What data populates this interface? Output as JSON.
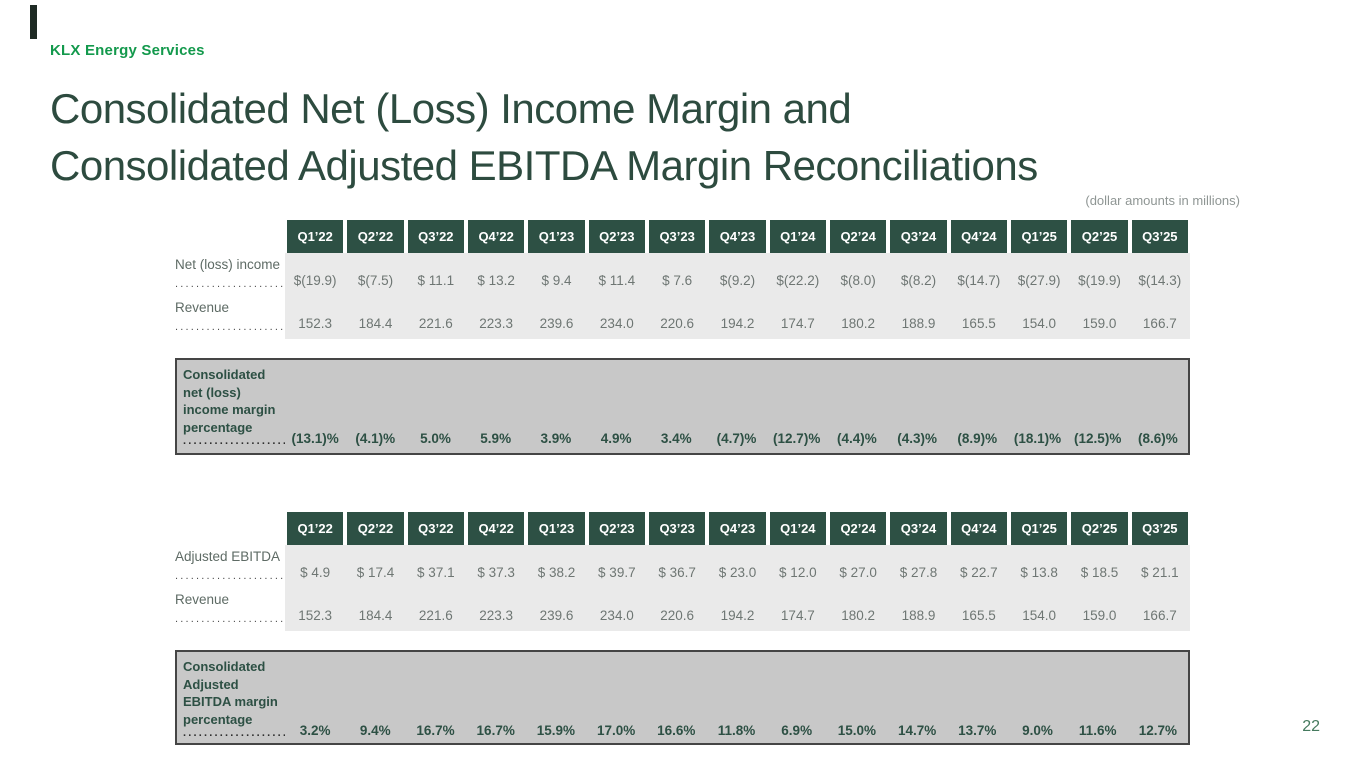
{
  "header": {
    "brand": "KLX Energy Services",
    "title_line1": "Consolidated Net (Loss) Income Margin and",
    "title_line2": "Consolidated Adjusted EBITDA Margin Reconciliations",
    "units_note": "(dollar amounts in millions)"
  },
  "leader_dots": "......................................",
  "quarters": [
    "Q1’22",
    "Q2’22",
    "Q3’22",
    "Q4’22",
    "Q1’23",
    "Q2’23",
    "Q3’23",
    "Q4’23",
    "Q1’24",
    "Q2’24",
    "Q3’24",
    "Q4’24",
    "Q1’25",
    "Q2’25",
    "Q3’25"
  ],
  "table1": {
    "rows": [
      {
        "label": "Net (loss) income",
        "values": [
          "$(19.9)",
          "$(7.5)",
          "$ 11.1",
          "$ 13.2",
          "$ 9.4",
          "$ 11.4",
          "$ 7.6",
          "$(9.2)",
          "$(22.2)",
          "$(8.0)",
          "$(8.2)",
          "$(14.7)",
          "$(27.9)",
          "$(19.9)",
          "$(14.3)"
        ]
      },
      {
        "label": "Revenue",
        "values": [
          "152.3",
          "184.4",
          "221.6",
          "223.3",
          "239.6",
          "234.0",
          "220.6",
          "194.2",
          "174.7",
          "180.2",
          "188.9",
          "165.5",
          "154.0",
          "159.0",
          "166.7"
        ]
      }
    ]
  },
  "block1": {
    "label": "Consolidated\nnet (loss)\nincome margin\npercentage",
    "values": [
      "(13.1)%",
      "(4.1)%",
      "5.0%",
      "5.9%",
      "3.9%",
      "4.9%",
      "3.4%",
      "(4.7)%",
      "(12.7)%",
      "(4.4)%",
      "(4.3)%",
      "(8.9)%",
      "(18.1)%",
      "(12.5)%",
      "(8.6)%"
    ]
  },
  "table2": {
    "rows": [
      {
        "label": "Adjusted EBITDA",
        "values": [
          "$ 4.9",
          "$ 17.4",
          "$ 37.1",
          "$ 37.3",
          "$ 38.2",
          "$ 39.7",
          "$ 36.7",
          "$ 23.0",
          "$ 12.0",
          "$ 27.0",
          "$ 27.8",
          "$ 22.7",
          "$ 13.8",
          "$ 18.5",
          "$ 21.1"
        ]
      },
      {
        "label": "Revenue",
        "values": [
          "152.3",
          "184.4",
          "221.6",
          "223.3",
          "239.6",
          "234.0",
          "220.6",
          "194.2",
          "174.7",
          "180.2",
          "188.9",
          "165.5",
          "154.0",
          "159.0",
          "166.7"
        ]
      }
    ]
  },
  "block2": {
    "label": "Consolidated\nAdjusted\nEBITDA margin\npercentage",
    "values": [
      "3.2%",
      "9.4%",
      "16.7%",
      "16.7%",
      "15.9%",
      "17.0%",
      "16.6%",
      "11.8%",
      "6.9%",
      "15.0%",
      "14.7%",
      "13.7%",
      "9.0%",
      "11.6%",
      "12.7%"
    ]
  },
  "footer": {
    "page_number": "22"
  },
  "colors": {
    "brand_green": "#13994c",
    "title_green": "#2d4b3f",
    "header_cell_green": "#2d5044",
    "body_bg_gray": "#eaeaea",
    "block_bg_gray": "#c8c8c8",
    "value_text_gray": "#6e7673"
  }
}
